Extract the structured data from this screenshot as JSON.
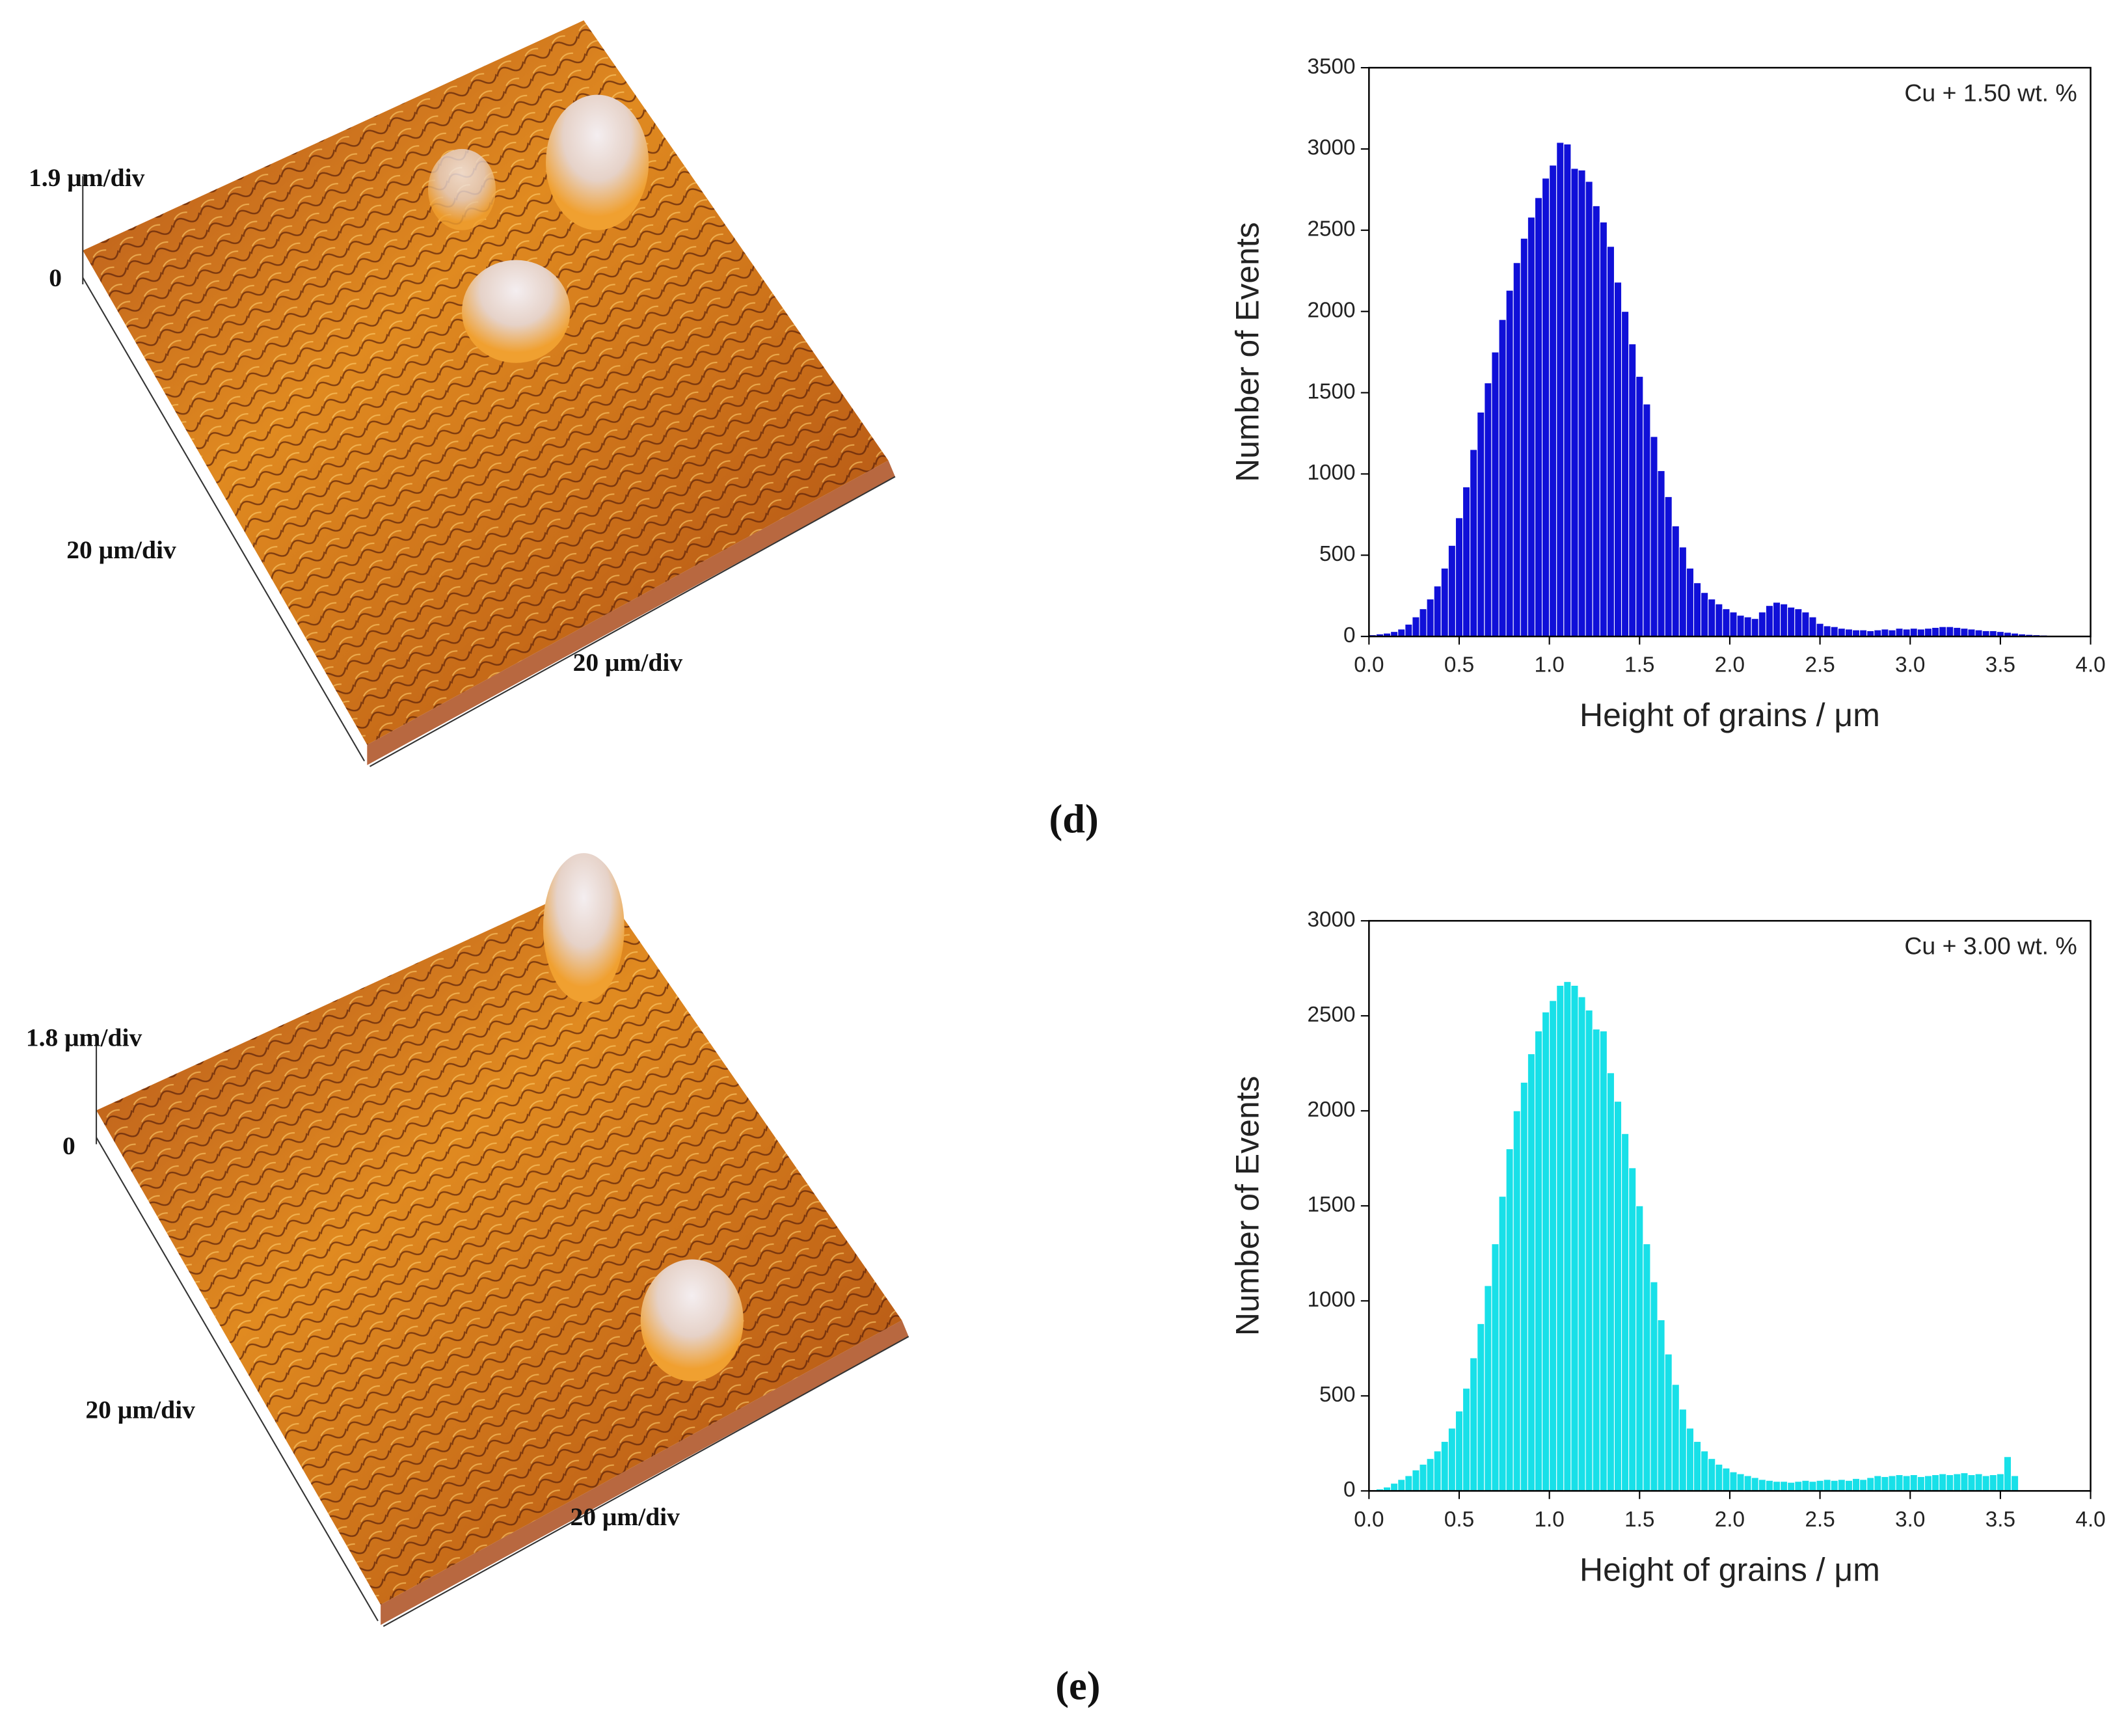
{
  "panels": [
    {
      "label": "(d)",
      "z_scale": "1.9 μm/div",
      "z_zero": "0",
      "y_scale": "20 μm/div",
      "x_scale": "20 μm/div"
    },
    {
      "label": "(e)",
      "z_scale": "1.8 μm/div",
      "z_zero": "0",
      "y_scale": "20 μm/div",
      "x_scale": "20 μm/div"
    }
  ],
  "chart_data": [
    {
      "type": "histogram",
      "annotation": "Cu + 1.50 wt. %",
      "xlabel": "Height of grains / μm",
      "ylabel": "Number of Events",
      "color": "#1010d8",
      "bins": [
        0,
        0.04,
        0.08,
        0.12,
        0.16,
        0.2,
        0.24,
        0.28,
        0.32,
        0.36,
        0.4,
        0.44,
        0.48,
        0.52,
        0.56,
        0.6,
        0.64,
        0.68,
        0.72,
        0.76,
        0.8,
        0.84,
        0.88,
        0.92,
        0.96,
        1,
        1.04,
        1.08,
        1.12,
        1.16,
        1.2,
        1.24,
        1.28,
        1.32,
        1.36,
        1.4,
        1.44,
        1.48,
        1.52,
        1.56,
        1.6,
        1.64,
        1.68,
        1.72,
        1.76,
        1.8,
        1.84,
        1.88,
        1.92,
        1.96,
        2,
        2.04,
        2.08,
        2.12,
        2.16,
        2.2,
        2.24,
        2.28,
        2.32,
        2.36,
        2.4,
        2.44,
        2.48,
        2.52,
        2.56,
        2.6,
        2.64,
        2.68,
        2.72,
        2.76,
        2.8,
        2.84,
        2.88,
        2.92,
        2.96,
        3,
        3.04,
        3.08,
        3.12,
        3.16,
        3.2,
        3.24,
        3.28,
        3.32,
        3.36,
        3.4,
        3.44,
        3.48,
        3.52,
        3.56,
        3.6,
        3.64,
        3.68,
        3.72,
        3.76,
        3.8,
        3.84
      ],
      "values": [
        10,
        15,
        20,
        30,
        45,
        75,
        120,
        170,
        230,
        310,
        420,
        560,
        730,
        920,
        1150,
        1380,
        1560,
        1750,
        1950,
        2130,
        2300,
        2450,
        2580,
        2700,
        2820,
        2900,
        3040,
        3030,
        2880,
        2870,
        2800,
        2650,
        2550,
        2400,
        2180,
        2000,
        1800,
        1600,
        1430,
        1230,
        1020,
        860,
        680,
        550,
        420,
        330,
        270,
        230,
        200,
        170,
        150,
        130,
        120,
        110,
        150,
        190,
        210,
        200,
        180,
        170,
        150,
        120,
        80,
        65,
        60,
        50,
        45,
        40,
        40,
        35,
        40,
        45,
        40,
        50,
        45,
        50,
        45,
        50,
        55,
        60,
        60,
        55,
        50,
        45,
        40,
        35,
        35,
        30,
        25,
        20,
        15,
        12,
        10,
        8,
        5,
        3
      ],
      "xlim": [
        0,
        4
      ],
      "ylim": [
        0,
        3500
      ],
      "xticks": [
        {
          "value": 0,
          "label": "0.0"
        },
        0.5,
        {
          "value": 1,
          "label": "1.0"
        },
        1.5,
        {
          "value": 2,
          "label": "2.0"
        },
        2.5,
        {
          "value": 3,
          "label": "3.0"
        },
        3.5,
        {
          "value": 4,
          "label": "4.0"
        }
      ],
      "yticks": [
        0,
        500,
        1000,
        1500,
        2000,
        2500,
        3000,
        3500
      ]
    },
    {
      "type": "histogram",
      "annotation": "Cu + 3.00 wt. %",
      "xlabel": "Height of grains / μm",
      "ylabel": "Number of Events",
      "color": "#18e0e8",
      "bins": [
        0,
        0.04,
        0.08,
        0.12,
        0.16,
        0.2,
        0.24,
        0.28,
        0.32,
        0.36,
        0.4,
        0.44,
        0.48,
        0.52,
        0.56,
        0.6,
        0.64,
        0.68,
        0.72,
        0.76,
        0.8,
        0.84,
        0.88,
        0.92,
        0.96,
        1,
        1.04,
        1.08,
        1.12,
        1.16,
        1.2,
        1.24,
        1.28,
        1.32,
        1.36,
        1.4,
        1.44,
        1.48,
        1.52,
        1.56,
        1.6,
        1.64,
        1.68,
        1.72,
        1.76,
        1.8,
        1.84,
        1.88,
        1.92,
        1.96,
        2,
        2.04,
        2.08,
        2.12,
        2.16,
        2.2,
        2.24,
        2.28,
        2.32,
        2.36,
        2.4,
        2.44,
        2.48,
        2.52,
        2.56,
        2.6,
        2.64,
        2.68,
        2.72,
        2.76,
        2.8,
        2.84,
        2.88,
        2.92,
        2.96,
        3,
        3.04,
        3.08,
        3.12,
        3.16,
        3.2,
        3.24,
        3.28,
        3.32,
        3.36,
        3.4,
        3.44,
        3.48,
        3.52,
        3.56,
        3.6
      ],
      "values": [
        5,
        10,
        20,
        40,
        60,
        80,
        110,
        140,
        170,
        210,
        260,
        330,
        420,
        540,
        700,
        880,
        1080,
        1300,
        1550,
        1800,
        2000,
        2150,
        2300,
        2420,
        2520,
        2580,
        2660,
        2680,
        2660,
        2600,
        2530,
        2430,
        2420,
        2200,
        2050,
        1880,
        1700,
        1500,
        1300,
        1100,
        900,
        720,
        560,
        430,
        330,
        260,
        210,
        170,
        140,
        120,
        100,
        90,
        80,
        70,
        60,
        55,
        50,
        50,
        45,
        50,
        55,
        50,
        55,
        60,
        55,
        60,
        55,
        65,
        60,
        70,
        80,
        75,
        80,
        85,
        80,
        85,
        75,
        80,
        85,
        90,
        85,
        90,
        95,
        85,
        90,
        80,
        85,
        90,
        180,
        80
      ],
      "xlim": [
        0,
        4
      ],
      "ylim": [
        0,
        3000
      ],
      "xticks": [
        {
          "value": 0,
          "label": "0.0"
        },
        0.5,
        {
          "value": 1,
          "label": "1.0"
        },
        1.5,
        {
          "value": 2,
          "label": "2.0"
        },
        2.5,
        {
          "value": 3,
          "label": "3.0"
        },
        3.5,
        {
          "value": 4,
          "label": "4.0"
        }
      ],
      "yticks": [
        0,
        500,
        1000,
        1500,
        2000,
        2500,
        3000
      ]
    }
  ]
}
